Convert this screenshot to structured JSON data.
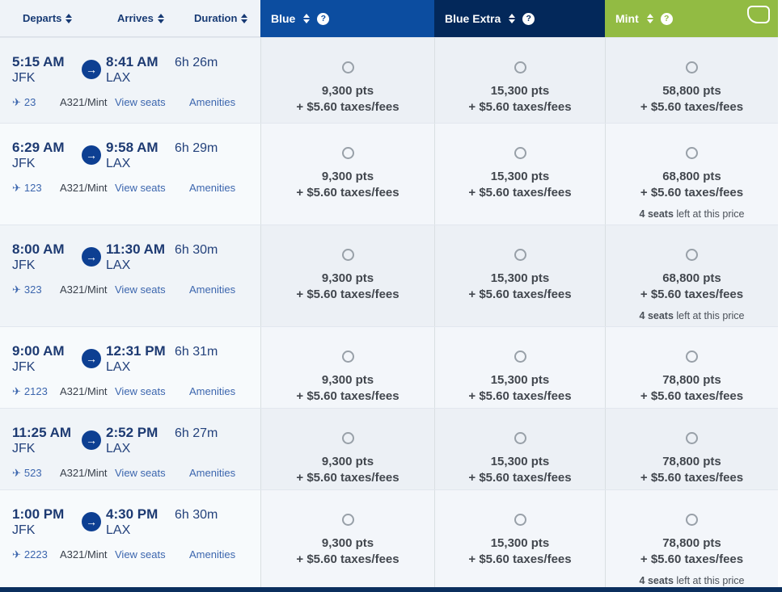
{
  "colors": {
    "blue_header_bg": "#0c4da0",
    "blue_extra_header_bg": "#03285a",
    "mint_header_bg": "#92bb43",
    "navy_text": "#1d3a72",
    "link_blue": "#3c66ae",
    "fare_text": "#42474e"
  },
  "icons": {
    "plane": "✈",
    "arrow_right": "→",
    "help": "?"
  },
  "header": {
    "flight_cols": [
      {
        "label": "Departs"
      },
      {
        "label": "Arrives"
      },
      {
        "label": "Duration"
      }
    ],
    "fare_cols": [
      {
        "label": "Blue"
      },
      {
        "label": "Blue Extra"
      },
      {
        "label": "Mint"
      }
    ]
  },
  "rows": [
    {
      "depart_time": "5:15 AM",
      "depart_airport": "JFK",
      "arrive_time": "8:41 AM",
      "arrive_airport": "LAX",
      "duration": "6h 26m",
      "flight_number": "23",
      "aircraft": "A321/Mint",
      "view_seats_label": "View seats",
      "amenities_label": "Amenities",
      "fares": [
        {
          "points": "9,300 pts",
          "taxes": "+ $5.60 taxes/fees",
          "seats_left_bold": "",
          "seats_left_rest": ""
        },
        {
          "points": "15,300 pts",
          "taxes": "+ $5.60 taxes/fees",
          "seats_left_bold": "",
          "seats_left_rest": ""
        },
        {
          "points": "58,800 pts",
          "taxes": "+ $5.60 taxes/fees",
          "seats_left_bold": "",
          "seats_left_rest": ""
        }
      ]
    },
    {
      "depart_time": "6:29 AM",
      "depart_airport": "JFK",
      "arrive_time": "9:58 AM",
      "arrive_airport": "LAX",
      "duration": "6h 29m",
      "flight_number": "123",
      "aircraft": "A321/Mint",
      "view_seats_label": "View seats",
      "amenities_label": "Amenities",
      "fares": [
        {
          "points": "9,300 pts",
          "taxes": "+ $5.60 taxes/fees",
          "seats_left_bold": "",
          "seats_left_rest": ""
        },
        {
          "points": "15,300 pts",
          "taxes": "+ $5.60 taxes/fees",
          "seats_left_bold": "",
          "seats_left_rest": ""
        },
        {
          "points": "68,800 pts",
          "taxes": "+ $5.60 taxes/fees",
          "seats_left_bold": "4 seats",
          "seats_left_rest": "left at this price"
        }
      ]
    },
    {
      "depart_time": "8:00 AM",
      "depart_airport": "JFK",
      "arrive_time": "11:30 AM",
      "arrive_airport": "LAX",
      "duration": "6h 30m",
      "flight_number": "323",
      "aircraft": "A321/Mint",
      "view_seats_label": "View seats",
      "amenities_label": "Amenities",
      "fares": [
        {
          "points": "9,300 pts",
          "taxes": "+ $5.60 taxes/fees",
          "seats_left_bold": "",
          "seats_left_rest": ""
        },
        {
          "points": "15,300 pts",
          "taxes": "+ $5.60 taxes/fees",
          "seats_left_bold": "",
          "seats_left_rest": ""
        },
        {
          "points": "68,800 pts",
          "taxes": "+ $5.60 taxes/fees",
          "seats_left_bold": "4 seats",
          "seats_left_rest": "left at this price"
        }
      ]
    },
    {
      "depart_time": "9:00 AM",
      "depart_airport": "JFK",
      "arrive_time": "12:31 PM",
      "arrive_airport": "LAX",
      "duration": "6h 31m",
      "flight_number": "2123",
      "aircraft": "A321/Mint",
      "view_seats_label": "View seats",
      "amenities_label": "Amenities",
      "fares": [
        {
          "points": "9,300 pts",
          "taxes": "+ $5.60 taxes/fees",
          "seats_left_bold": "",
          "seats_left_rest": ""
        },
        {
          "points": "15,300 pts",
          "taxes": "+ $5.60 taxes/fees",
          "seats_left_bold": "",
          "seats_left_rest": ""
        },
        {
          "points": "78,800 pts",
          "taxes": "+ $5.60 taxes/fees",
          "seats_left_bold": "",
          "seats_left_rest": ""
        }
      ]
    },
    {
      "depart_time": "11:25 AM",
      "depart_airport": "JFK",
      "arrive_time": "2:52 PM",
      "arrive_airport": "LAX",
      "duration": "6h 27m",
      "flight_number": "523",
      "aircraft": "A321/Mint",
      "view_seats_label": "View seats",
      "amenities_label": "Amenities",
      "fares": [
        {
          "points": "9,300 pts",
          "taxes": "+ $5.60 taxes/fees",
          "seats_left_bold": "",
          "seats_left_rest": ""
        },
        {
          "points": "15,300 pts",
          "taxes": "+ $5.60 taxes/fees",
          "seats_left_bold": "",
          "seats_left_rest": ""
        },
        {
          "points": "78,800 pts",
          "taxes": "+ $5.60 taxes/fees",
          "seats_left_bold": "",
          "seats_left_rest": ""
        }
      ]
    },
    {
      "depart_time": "1:00 PM",
      "depart_airport": "JFK",
      "arrive_time": "4:30 PM",
      "arrive_airport": "LAX",
      "duration": "6h 30m",
      "flight_number": "2223",
      "aircraft": "A321/Mint",
      "view_seats_label": "View seats",
      "amenities_label": "Amenities",
      "fares": [
        {
          "points": "9,300 pts",
          "taxes": "+ $5.60 taxes/fees",
          "seats_left_bold": "",
          "seats_left_rest": ""
        },
        {
          "points": "15,300 pts",
          "taxes": "+ $5.60 taxes/fees",
          "seats_left_bold": "",
          "seats_left_rest": ""
        },
        {
          "points": "78,800 pts",
          "taxes": "+ $5.60 taxes/fees",
          "seats_left_bold": "4 seats",
          "seats_left_rest": "left at this price"
        }
      ]
    }
  ]
}
